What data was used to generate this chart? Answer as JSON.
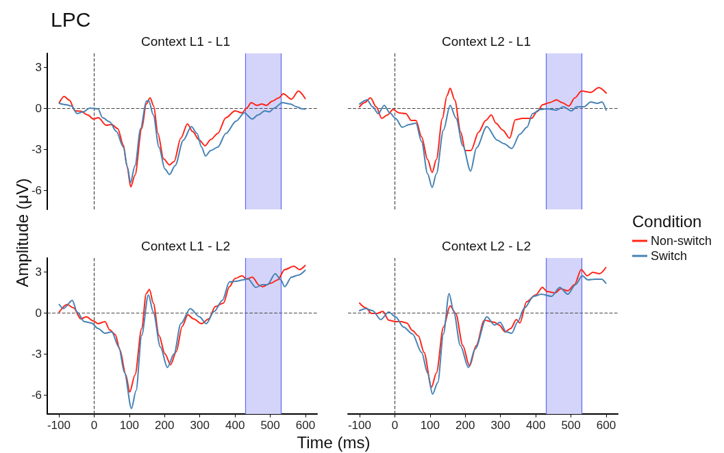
{
  "chart_data": [
    {
      "type": "line",
      "title": "Context L1 - L1",
      "annotations": [
        "LPC"
      ],
      "ylabel": "Amplitude (μV)",
      "xlim": [
        -133,
        633
      ],
      "xticks": [
        -100,
        0,
        100,
        200,
        300,
        400,
        500,
        600
      ],
      "ylim": [
        -7.4,
        4
      ],
      "yticks": [
        -6,
        -3,
        0,
        3
      ],
      "tick_labels": "y",
      "grid": false,
      "marker": "none",
      "line_style": "solid",
      "bands": [
        {
          "axis": "x",
          "from": 430,
          "to": 530,
          "color": "#d4d4fa"
        }
      ],
      "ref_lines": [
        {
          "axis": "x",
          "value": 0,
          "color": "#444444",
          "line_style": "dashed"
        },
        {
          "axis": "y",
          "value": 0,
          "color": "#444444",
          "line_style": "dashed"
        },
        {
          "axis": "x",
          "value": 430,
          "color": "#5a6af0",
          "line_style": "solid"
        },
        {
          "axis": "x",
          "value": 530,
          "color": "#5a6af0",
          "line_style": "solid"
        }
      ],
      "series": [
        {
          "color": "#ff2418",
          "x": [
            -99,
            -85,
            -70,
            -54,
            -38,
            -18,
            -2,
            12,
            34,
            50,
            67,
            83,
            93,
            104,
            116,
            135,
            148,
            159,
            169,
            181,
            197,
            214,
            227,
            246,
            265,
            279,
            299,
            315,
            331,
            351,
            374,
            400,
            420,
            433,
            446,
            462,
            476,
            489,
            505,
            524,
            537,
            560,
            580,
            599
          ],
          "values": [
            0.4,
            0.85,
            0.57,
            -0.2,
            -0.23,
            -0.5,
            -0.8,
            -0.7,
            -1.25,
            -1.2,
            -1.5,
            -2.7,
            -4.2,
            -5.75,
            -4.9,
            -1.5,
            0.3,
            0.75,
            0.15,
            -1.85,
            -3.7,
            -4.15,
            -3.9,
            -2.2,
            -1.15,
            -1.7,
            -2.35,
            -2.75,
            -2.3,
            -1.85,
            -0.7,
            -0.2,
            -0.35,
            0,
            0.4,
            0.2,
            0.3,
            0.2,
            0.5,
            0.75,
            1.05,
            0.65,
            1.25,
            0.7
          ]
        },
        {
          "color": "#4682b4",
          "x": [
            -99,
            -80,
            -64,
            -48,
            -31,
            -12,
            11,
            24,
            44,
            63,
            83,
            95,
            103,
            116,
            132,
            148,
            155,
            168,
            184,
            201,
            214,
            230,
            253,
            276,
            292,
            305,
            316,
            331,
            351,
            374,
            403,
            426,
            449,
            465,
            485,
            498,
            511,
            534,
            557,
            574,
            590,
            599
          ],
          "values": [
            0.35,
            0.25,
            0.15,
            -0.4,
            -0.27,
            0,
            -0.05,
            -0.7,
            -1,
            -1.7,
            -2.85,
            -4.35,
            -5.45,
            -4.2,
            -1.5,
            0.5,
            0.55,
            -0.5,
            -2.85,
            -4.45,
            -4.85,
            -4.2,
            -2.35,
            -1.35,
            -1.85,
            -2.85,
            -3.5,
            -3.1,
            -2.85,
            -1.85,
            -0.95,
            -0.35,
            -0.8,
            -0.5,
            -0.2,
            -0.27,
            0,
            0.4,
            0.3,
            0.1,
            -0.05,
            -0.07
          ]
        }
      ]
    },
    {
      "type": "line",
      "title": "Context L2 - L1",
      "legend": "right",
      "legend_title": "Condition",
      "xlim": [
        -133,
        633
      ],
      "xticks": [
        -100,
        0,
        100,
        200,
        300,
        400,
        500,
        600
      ],
      "ylim": [
        -7.4,
        4
      ],
      "yticks": [
        -6,
        -3,
        0,
        3
      ],
      "tick_labels": false,
      "grid": false,
      "marker": "none",
      "line_style": "solid",
      "bands": [
        {
          "axis": "x",
          "from": 430,
          "to": 530,
          "color": "#d4d4fa"
        }
      ],
      "ref_lines": [
        {
          "axis": "x",
          "value": 0,
          "color": "#444444",
          "line_style": "dashed"
        },
        {
          "axis": "y",
          "value": 0,
          "color": "#444444",
          "line_style": "dashed"
        },
        {
          "axis": "x",
          "value": 430,
          "color": "#5a6af0",
          "line_style": "solid"
        },
        {
          "axis": "x",
          "value": 530,
          "color": "#5a6af0",
          "line_style": "solid"
        }
      ],
      "series": [
        {
          "name": "Non-switch",
          "color": "#ff2418",
          "x": [
            -100,
            -86,
            -69,
            -53,
            -37,
            -21,
            -5,
            12,
            31,
            47,
            60,
            76,
            93,
            106,
            118,
            135,
            148,
            157,
            170,
            187,
            200,
            216,
            238,
            258,
            274,
            287,
            306,
            326,
            342,
            362,
            388,
            404,
            420,
            439,
            459,
            475,
            494,
            511,
            530,
            556,
            579,
            600
          ],
          "values": [
            0.1,
            0.4,
            0.75,
            0.1,
            -0.75,
            -0.5,
            -0.1,
            -0.35,
            -0.4,
            -0.9,
            -0.9,
            -2.1,
            -3.75,
            -4.7,
            -3.75,
            -0.75,
            0.9,
            1.45,
            0.6,
            -1.75,
            -3.1,
            -3.1,
            -1.75,
            -0.9,
            -0.5,
            -1.1,
            -1.6,
            -2.2,
            -0.85,
            -0.75,
            -0.75,
            -0.25,
            0.25,
            0.4,
            0.6,
            0.4,
            0.15,
            0.75,
            1.25,
            1.15,
            1.5,
            1.1
          ]
        },
        {
          "name": "Switch",
          "color": "#4682b4",
          "x": [
            -100,
            -79,
            -63,
            -47,
            -30,
            -14,
            2,
            21,
            41,
            60,
            76,
            93,
            106,
            118,
            138,
            157,
            174,
            193,
            215,
            232,
            261,
            291,
            310,
            332,
            355,
            375,
            391,
            413,
            433,
            459,
            478,
            501,
            517,
            537,
            556,
            575,
            588,
            600
          ],
          "values": [
            0.3,
            0.6,
            0.1,
            -0.4,
            0.2,
            -0.35,
            -0.75,
            -1.4,
            -1.2,
            -1.1,
            -2.45,
            -4.8,
            -5.8,
            -4.8,
            -1.6,
            0.2,
            -0.75,
            -2.75,
            -4.6,
            -2.9,
            -1.35,
            -2.35,
            -2.6,
            -2.95,
            -1.9,
            -1.4,
            -0.4,
            -0.1,
            -0.05,
            -0.15,
            0.1,
            -0.2,
            0.1,
            0.1,
            0.45,
            0.35,
            0.45,
            -0.15
          ]
        }
      ]
    },
    {
      "type": "line",
      "title": "Context L1 - L2",
      "xlabel": "Time (ms)",
      "xlim": [
        -133,
        633
      ],
      "xticks": [
        -100,
        0,
        100,
        200,
        300,
        400,
        500,
        600
      ],
      "ylim": [
        -7.4,
        4
      ],
      "yticks": [
        -6,
        -3,
        0,
        3
      ],
      "grid": false,
      "marker": "none",
      "line_style": "solid",
      "bands": [
        {
          "axis": "x",
          "from": 430,
          "to": 530,
          "color": "#d4d4fa"
        }
      ],
      "ref_lines": [
        {
          "axis": "x",
          "value": 0,
          "color": "#444444",
          "line_style": "dashed"
        },
        {
          "axis": "y",
          "value": 0,
          "color": "#444444",
          "line_style": "dashed"
        },
        {
          "axis": "x",
          "value": 430,
          "color": "#5a6af0",
          "line_style": "solid"
        },
        {
          "axis": "x",
          "value": 530,
          "color": "#5a6af0",
          "line_style": "solid"
        }
      ],
      "series": [
        {
          "color": "#ff2418",
          "x": [
            -99,
            -77,
            -58,
            -38,
            -22,
            -2,
            11,
            31,
            44,
            60,
            73,
            90,
            101,
            116,
            135,
            148,
            157,
            168,
            184,
            201,
            217,
            233,
            250,
            266,
            282,
            305,
            325,
            344,
            367,
            384,
            400,
            420,
            433,
            449,
            469,
            478,
            501,
            521,
            541,
            567,
            583,
            599
          ],
          "values": [
            0.05,
            0.6,
            0.35,
            -0.45,
            -0.3,
            -0.6,
            -0.8,
            -0.65,
            -1.25,
            -1.6,
            -2.7,
            -4.55,
            -5.8,
            -4.55,
            -1.15,
            1.4,
            1.7,
            0.7,
            -1.65,
            -3,
            -3.8,
            -2.85,
            -1,
            -0.15,
            -0.45,
            -0.8,
            -0.45,
            0.45,
            0.7,
            1.9,
            2.5,
            2.7,
            2.45,
            2.6,
            2,
            1.9,
            2.15,
            2.4,
            3.15,
            3.4,
            3.15,
            3.45
          ]
        },
        {
          "color": "#4682b4",
          "x": [
            -99,
            -87,
            -62,
            -48,
            -28,
            -8,
            11,
            31,
            50,
            70,
            86,
            106,
            119,
            135,
            154,
            168,
            188,
            208,
            227,
            246,
            273,
            299,
            318,
            341,
            364,
            384,
            403,
            423,
            436,
            459,
            478,
            492,
            514,
            530,
            541,
            560,
            580,
            599
          ],
          "values": [
            0.6,
            0.3,
            0.9,
            0.05,
            -0.65,
            -0.75,
            -1.15,
            -1.5,
            -1.4,
            -2.5,
            -4.35,
            -7,
            -5.7,
            -1.65,
            1.3,
            0.05,
            -2.5,
            -4,
            -3,
            -0.8,
            0.3,
            -0.3,
            -0.8,
            0.1,
            0.9,
            2.25,
            2.3,
            2.4,
            2.5,
            1.85,
            2.05,
            2.05,
            2.85,
            2.4,
            1.9,
            2.6,
            2.75,
            3.1
          ]
        }
      ]
    },
    {
      "type": "line",
      "title": "Context L2 - L2",
      "xlim": [
        -133,
        633
      ],
      "xticks": [
        -100,
        0,
        100,
        200,
        300,
        400,
        500,
        600
      ],
      "ylim": [
        -7.4,
        4
      ],
      "yticks": [
        -6,
        -3,
        0,
        3
      ],
      "tick_labels": "x",
      "grid": false,
      "marker": "none",
      "line_style": "solid",
      "bands": [
        {
          "axis": "x",
          "from": 430,
          "to": 530,
          "color": "#d4d4fa"
        }
      ],
      "ref_lines": [
        {
          "axis": "x",
          "value": 0,
          "color": "#444444",
          "line_style": "dashed"
        },
        {
          "axis": "y",
          "value": 0,
          "color": "#444444",
          "line_style": "dashed"
        },
        {
          "axis": "x",
          "value": 430,
          "color": "#5a6af0",
          "line_style": "solid"
        },
        {
          "axis": "x",
          "value": 530,
          "color": "#5a6af0",
          "line_style": "solid"
        }
      ],
      "series": [
        {
          "color": "#ff2418",
          "x": [
            -100,
            -82,
            -66,
            -50,
            -34,
            -17,
            2,
            18,
            34,
            50,
            67,
            83,
            104,
            118,
            138,
            157,
            173,
            193,
            212,
            231,
            254,
            283,
            296,
            313,
            329,
            345,
            355,
            374,
            400,
            419,
            432,
            455,
            471,
            491,
            510,
            529,
            546,
            562,
            581,
            599
          ],
          "values": [
            0.7,
            0.35,
            -0.05,
            -0.05,
            0.1,
            -0.55,
            -0.65,
            -0.65,
            -0.75,
            -1.3,
            -1.7,
            -2.9,
            -5.45,
            -4.4,
            -1.05,
            0.5,
            -0.05,
            -2.4,
            -3.9,
            -2.4,
            -0.55,
            -0.7,
            -0.9,
            -1.4,
            -1.15,
            -0.5,
            -0.75,
            0.8,
            1.3,
            1.85,
            1.55,
            1.45,
            1.75,
            1.6,
            2.05,
            3.15,
            2.7,
            2.95,
            2.85,
            3.3
          ]
        },
        {
          "color": "#4682b4",
          "x": [
            -100,
            -82,
            -63,
            -40,
            -17,
            2,
            25,
            50,
            76,
            93,
            107,
            122,
            138,
            154,
            167,
            186,
            209,
            228,
            261,
            283,
            299,
            316,
            332,
            348,
            368,
            394,
            416,
            445,
            468,
            491,
            513,
            532,
            548,
            568,
            587,
            599
          ],
          "values": [
            0.15,
            0.3,
            0.15,
            -0.5,
            0.05,
            -0.3,
            -1.05,
            -1.55,
            -2.9,
            -4.4,
            -5.95,
            -5.1,
            -1.55,
            1.4,
            0.1,
            -2.4,
            -4,
            -2.65,
            -0.3,
            -0.9,
            -0.7,
            -1.4,
            -1.5,
            -0.7,
            0.35,
            1.2,
            1.35,
            1.2,
            1.85,
            1.35,
            2.05,
            2.7,
            2.4,
            2.45,
            2.45,
            2.15
          ]
        }
      ]
    }
  ]
}
